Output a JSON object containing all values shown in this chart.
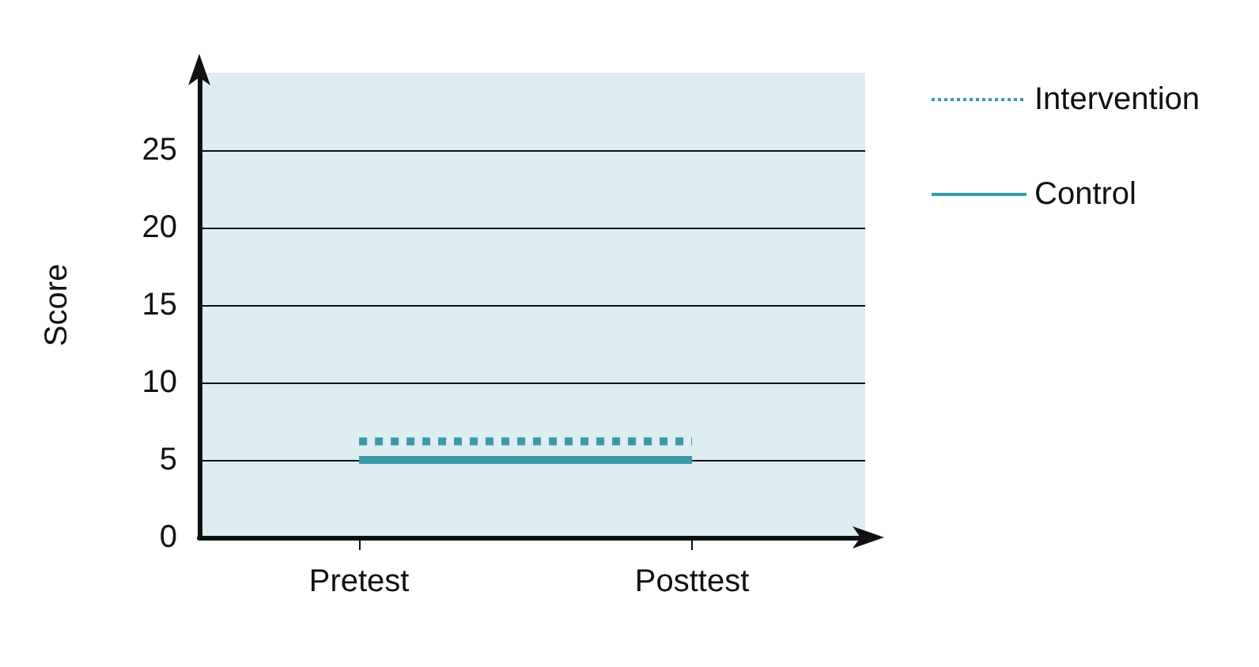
{
  "chart_data": {
    "type": "line",
    "ylabel": "Score",
    "categories": [
      "Pretest",
      "Posttest"
    ],
    "series": [
      {
        "name": "Intervention",
        "color": "#3a9aa6",
        "values": [
          6.2,
          6.2
        ],
        "line_style": "dotted"
      },
      {
        "name": "Control",
        "color": "#3a9aa6",
        "values": [
          5,
          5
        ],
        "line_style": "solid"
      }
    ],
    "ylim": [
      0,
      30
    ],
    "yticks": [
      0,
      5,
      10,
      15,
      20,
      25
    ],
    "grid": "y",
    "legend": "top right",
    "marker": "none"
  }
}
